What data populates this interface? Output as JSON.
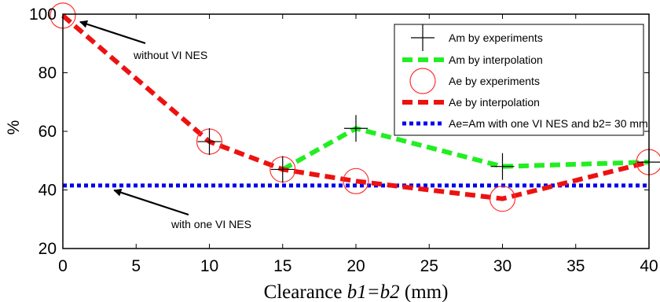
{
  "chart_data": {
    "type": "line",
    "xlabel": "Clearance b1=b2 (mm)",
    "xlabel_parts": {
      "prefix": "Clearance ",
      "italic": "b1=b2",
      "suffix": " (mm)"
    },
    "ylabel": "%",
    "xlim": [
      0,
      40
    ],
    "ylim": [
      20,
      100
    ],
    "xticks": [
      "0",
      "5",
      "10",
      "15",
      "20",
      "25",
      "30",
      "35",
      "40"
    ],
    "yticks": [
      "20",
      "40",
      "60",
      "80",
      "100"
    ],
    "grid": false,
    "legend_position": "top-right",
    "series": [
      {
        "name": "Am by experiments",
        "style": "markers-plus",
        "color": "#000000",
        "x": [
          10,
          15,
          20,
          30,
          40
        ],
        "y": [
          56.5,
          47,
          61,
          48,
          49.5
        ]
      },
      {
        "name": "Am by interpolation",
        "style": "dashed-line",
        "color": "#22ee22",
        "x": [
          15,
          20,
          30,
          40
        ],
        "y": [
          47,
          61,
          48,
          49.5
        ]
      },
      {
        "name": "Ae by experiments",
        "style": "markers-circle",
        "color": "#ff3030",
        "x": [
          0,
          10,
          15,
          20,
          30,
          40
        ],
        "y": [
          99.5,
          56.5,
          47,
          43,
          37,
          49.5
        ]
      },
      {
        "name": "Ae by interpolation",
        "style": "dashed-line",
        "color": "#ee1111",
        "x": [
          0,
          10,
          15,
          20,
          30,
          40
        ],
        "y": [
          99.5,
          56.5,
          47,
          43,
          37,
          49.5
        ]
      },
      {
        "name": "Ae=Am with one VI NES and b2= 30 mm",
        "style": "dotted-line",
        "color": "#0000ee",
        "x": [
          0,
          40
        ],
        "y": [
          41.5,
          41.5
        ]
      }
    ],
    "annotations": [
      {
        "text": "without VI NES",
        "points_to": [
          0,
          99.5
        ]
      },
      {
        "text": "with one VI NES",
        "points_to": [
          3.5,
          41.5
        ]
      }
    ]
  }
}
